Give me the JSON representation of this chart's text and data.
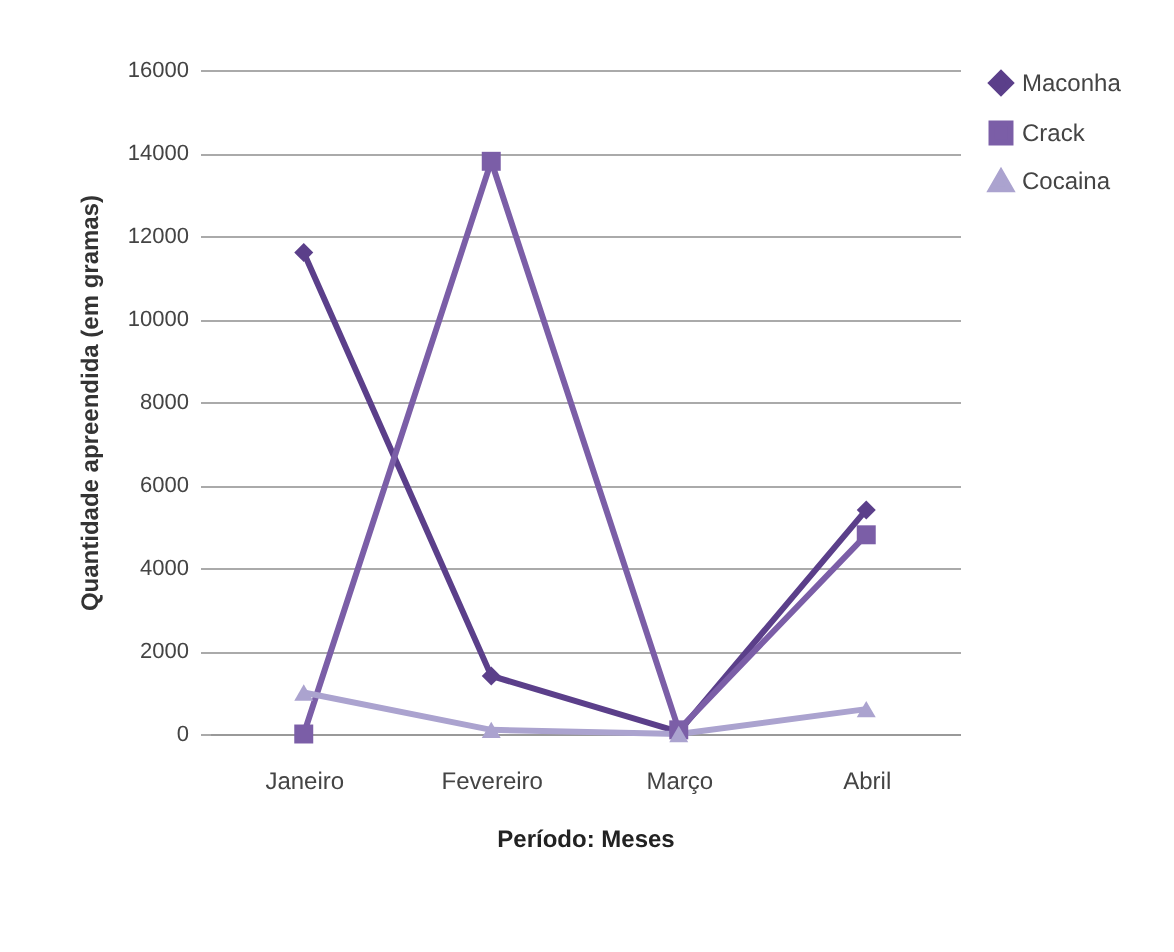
{
  "chart_data": {
    "type": "line",
    "xlabel": "Período: Meses",
    "ylabel": "Quantidade apreendida (em gramas)",
    "categories": [
      "Janeiro",
      "Fevereiro",
      "Março",
      "Abril"
    ],
    "series": [
      {
        "name": "Maconha",
        "color": "#5b3f8a",
        "marker": "diamond",
        "values": [
          11600,
          1400,
          50,
          5400
        ]
      },
      {
        "name": "Crack",
        "color": "#7b5ea7",
        "marker": "square",
        "values": [
          0,
          13800,
          100,
          4800
        ]
      },
      {
        "name": "Cocaina",
        "color": "#aba3cf",
        "marker": "triangle",
        "values": [
          1000,
          100,
          0,
          600
        ]
      }
    ],
    "ylim": [
      0,
      16000
    ],
    "yticks": [
      0,
      2000,
      4000,
      6000,
      8000,
      10000,
      12000,
      14000,
      16000
    ],
    "grid": "y",
    "legend": "right",
    "line_style": "solid"
  }
}
